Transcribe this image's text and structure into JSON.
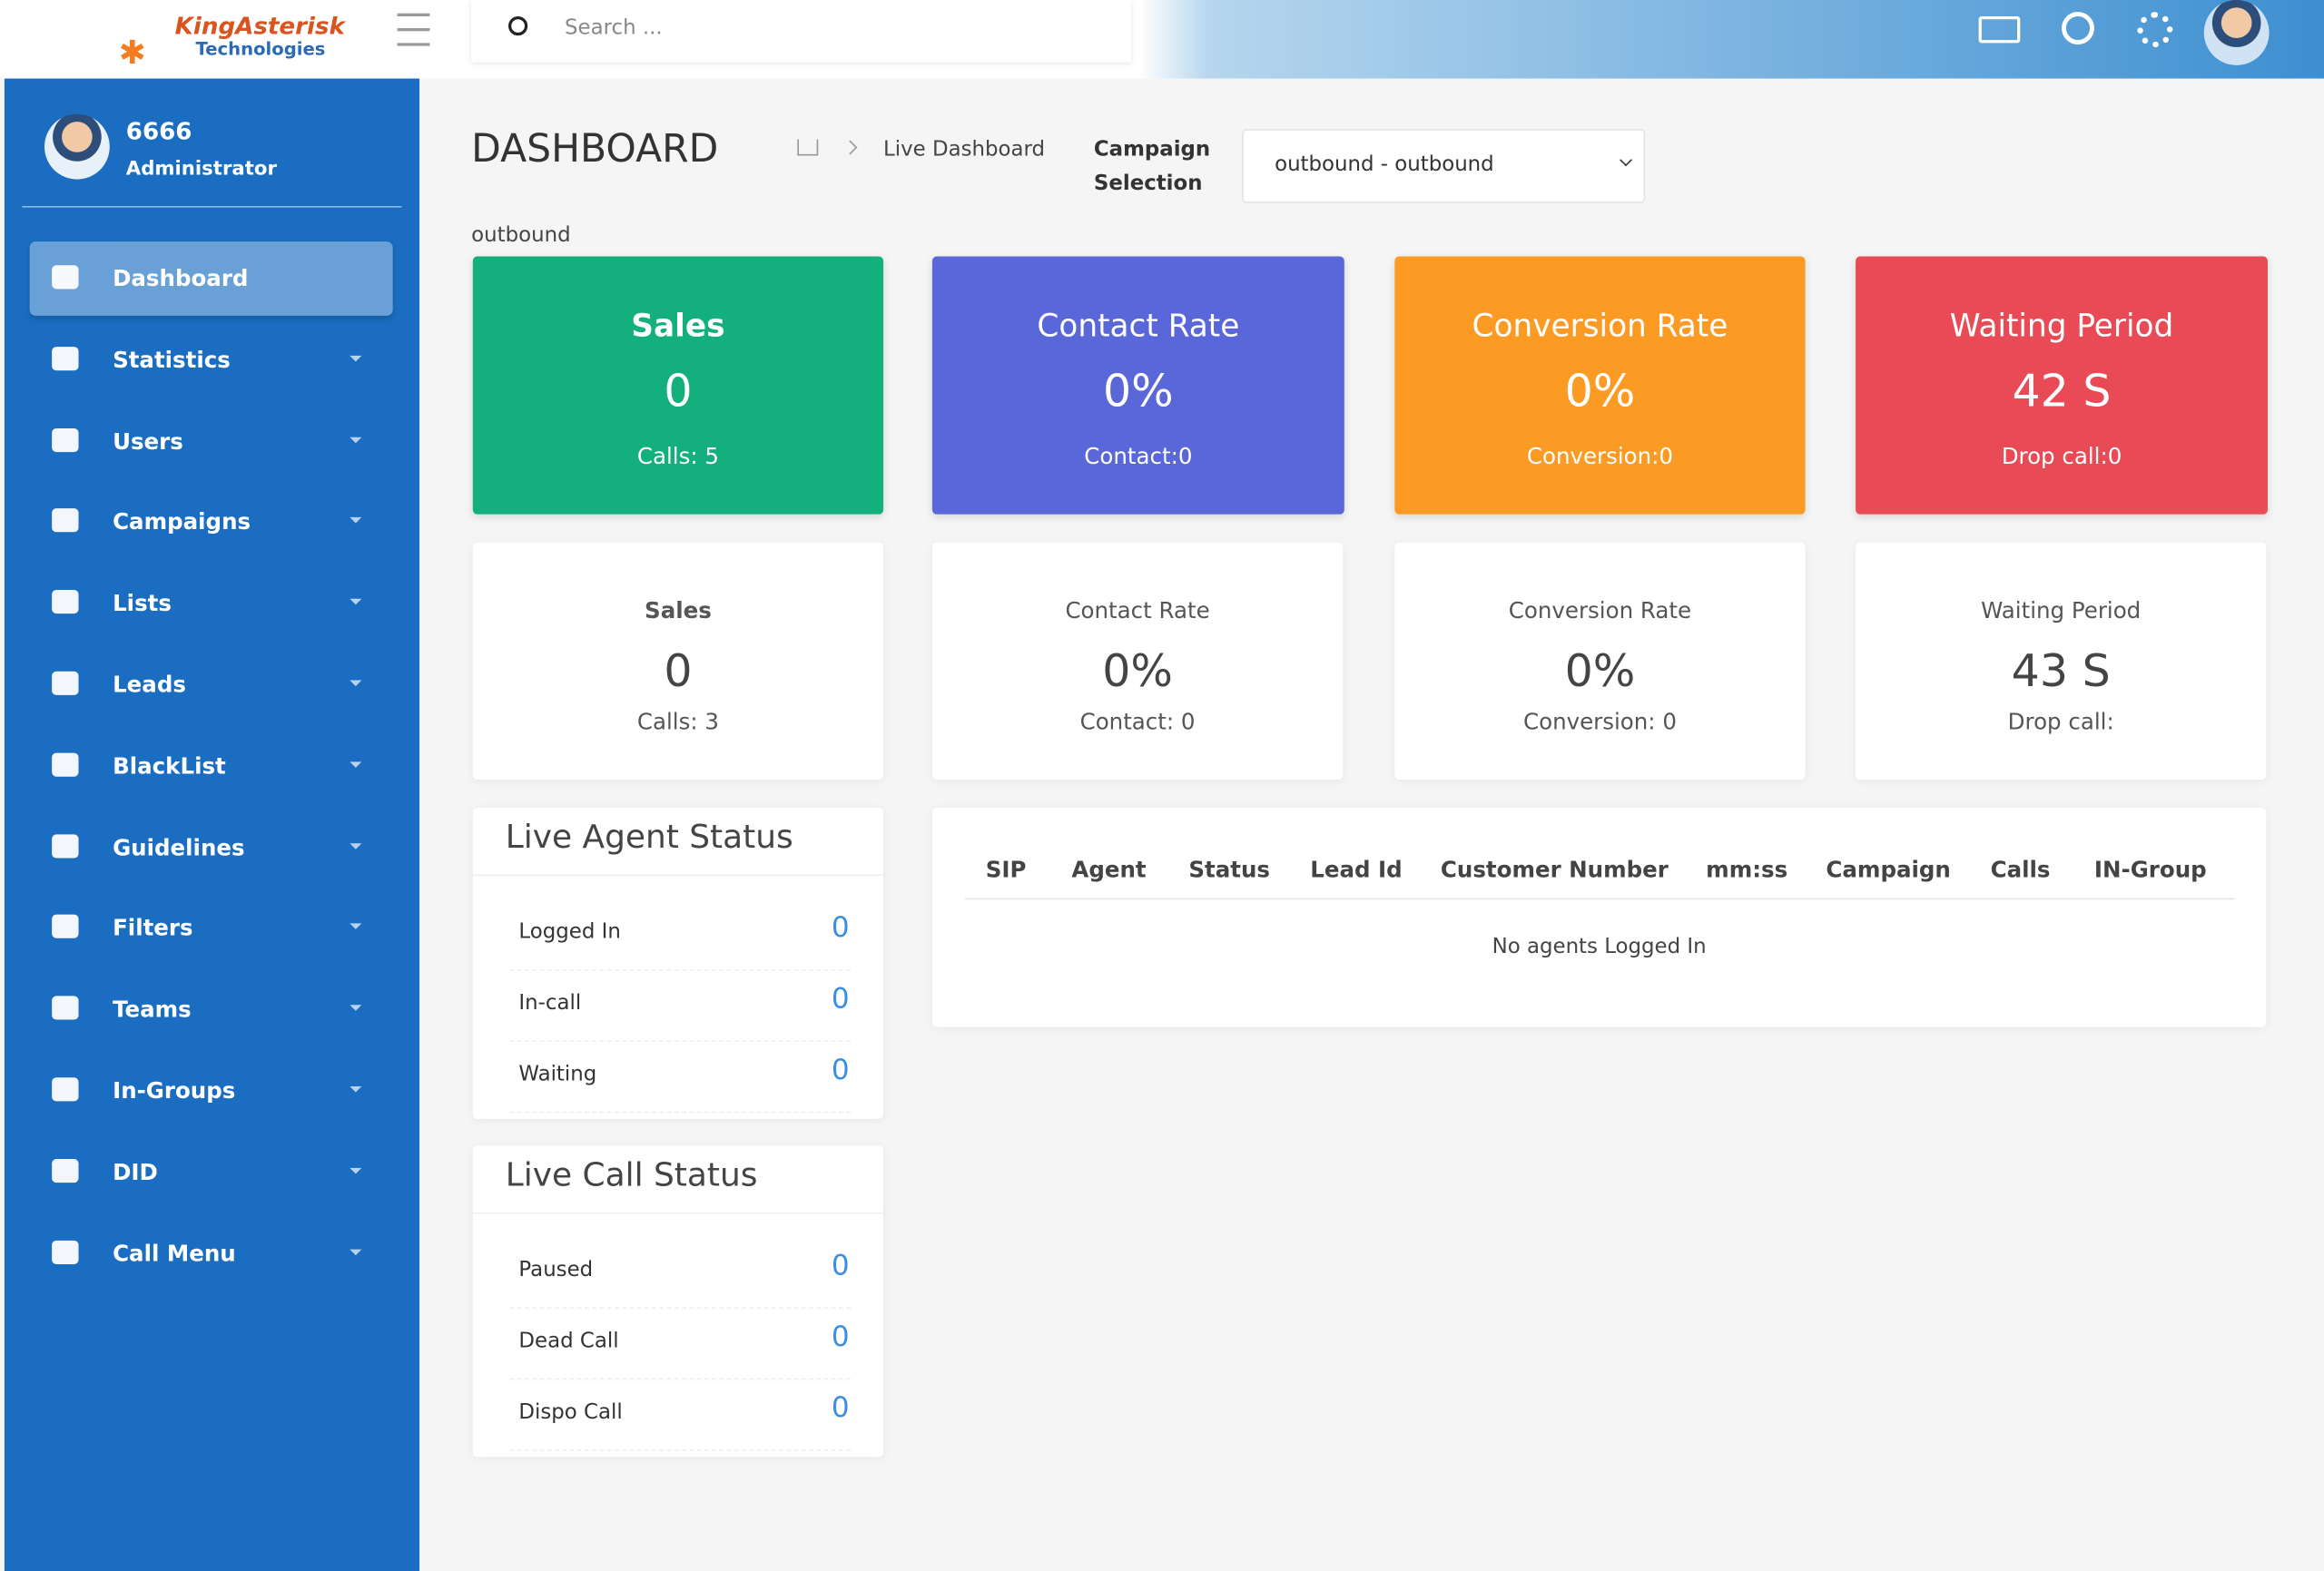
{
  "header": {
    "logo": "KingAsterisk",
    "logo_sub": "Technologies",
    "search_placeholder": "Search ..."
  },
  "user": {
    "name": "6666",
    "role": "Administrator"
  },
  "nav": [
    "Dashboard",
    "Statistics",
    "Users",
    "Campaigns",
    "Lists",
    "Leads",
    "BlackList",
    "Guidelines",
    "Filters",
    "Teams",
    "In-Groups",
    "DID",
    "Call Menu"
  ],
  "page": {
    "title": "DASHBOARD",
    "breadcrumb": "Live Dashboard",
    "campaign_label": "Campaign Selection",
    "campaign_value": "outbound - outbound",
    "subheading": "outbound"
  },
  "top_cards": [
    {
      "title": "Sales",
      "value": "0",
      "sub": "Calls: 5"
    },
    {
      "title": "Contact Rate",
      "value": "0%",
      "sub": "Contact:0"
    },
    {
      "title": "Conversion Rate",
      "value": "0%",
      "sub": "Conversion:0"
    },
    {
      "title": "Waiting Period",
      "value": "42 S",
      "sub": "Drop call:0"
    }
  ],
  "stat_cards": [
    {
      "title": "Sales",
      "value": "0",
      "sub": "Calls: 3"
    },
    {
      "title": "Contact Rate",
      "value": "0%",
      "sub": "Contact: 0"
    },
    {
      "title": "Conversion Rate",
      "value": "0%",
      "sub": "Conversion: 0"
    },
    {
      "title": "Waiting Period",
      "value": "43 S",
      "sub": "Drop call:"
    }
  ],
  "panels": [
    {
      "title": "Live Agent Status",
      "rows": [
        {
          "label": "Logged In",
          "value": "0"
        },
        {
          "label": "In-call",
          "value": "0"
        },
        {
          "label": "Waiting",
          "value": "0"
        }
      ]
    },
    {
      "title": "Live Call Status",
      "rows": [
        {
          "label": "Paused",
          "value": "0"
        },
        {
          "label": "Dead Call",
          "value": "0"
        },
        {
          "label": "Dispo Call",
          "value": "0"
        }
      ]
    }
  ],
  "table": {
    "headers": [
      "SIP",
      "Agent",
      "Status",
      "Lead Id",
      "Customer Number",
      "mm:ss",
      "Campaign",
      "Calls",
      "IN-Group"
    ],
    "empty": "No agents Logged In"
  }
}
